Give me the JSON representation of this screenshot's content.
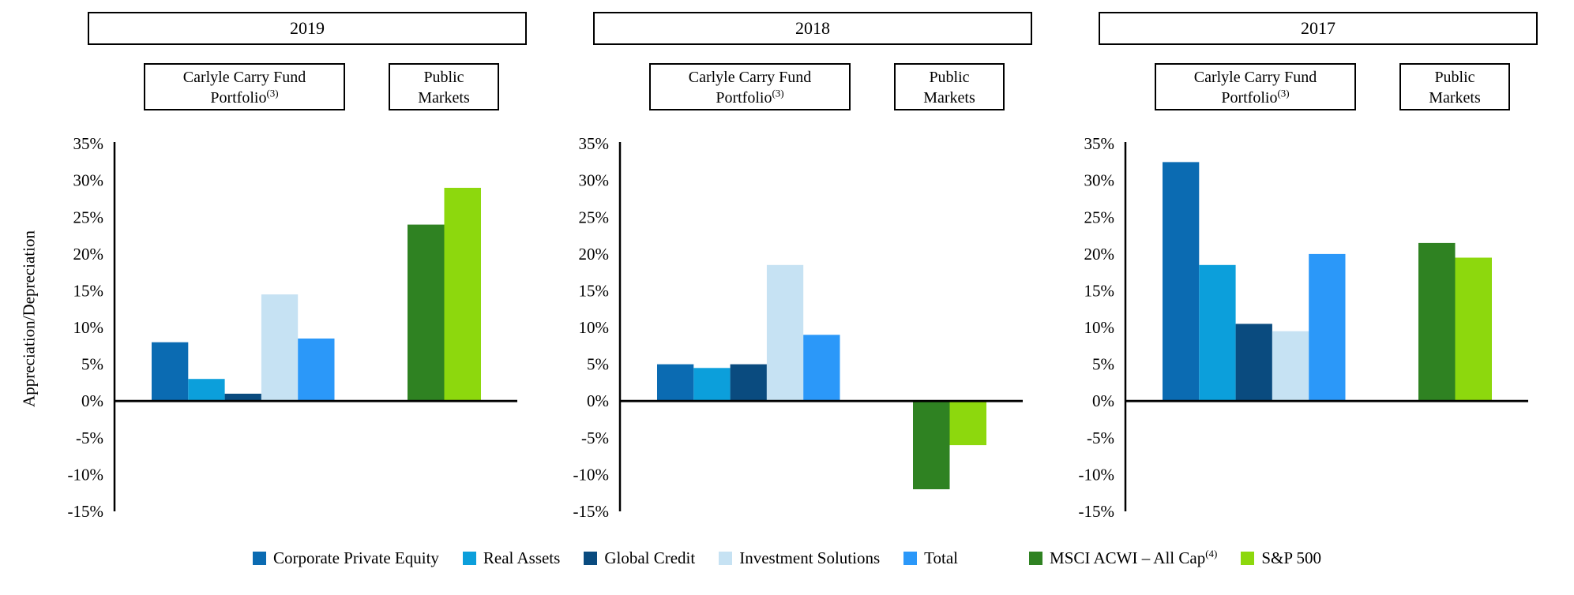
{
  "figure": {
    "labels": {
      "carry_line1": "Carlyle Carry Fund",
      "carry_line2": "Portfolio",
      "carry_sup": "(3)",
      "public_line1": "Public",
      "public_line2": "Markets"
    }
  },
  "chart_data": {
    "type": "bar",
    "title": "",
    "xlabel": "",
    "ylabel": "Appreciation/Depreciation",
    "ylim": [
      -15,
      35
    ],
    "tick_step": 5,
    "tick_labels": [
      "35%",
      "30%",
      "25%",
      "20%",
      "15%",
      "10%",
      "5%",
      "0%",
      "-5%",
      "-10%",
      "-15%"
    ],
    "grid": false,
    "legend_position": "bottom",
    "group_labels": [
      "Carlyle Carry Fund Portfolio(3)",
      "Public Markets"
    ],
    "series_labels": [
      "Corporate Private Equity",
      "Real Assets",
      "Global Credit",
      "Investment Solutions",
      "Total",
      "MSCI ACWI – All Cap(4)",
      "S&P 500"
    ],
    "series_colors": [
      "#0B6BB2",
      "#0C9FDB",
      "#0A4B7F",
      "#C6E2F3",
      "#2B98F9",
      "#2F8222",
      "#8DD80D"
    ],
    "charts": [
      {
        "year": "2019",
        "carry_values": [
          8,
          3,
          1,
          14.5,
          8.5
        ],
        "public_values": [
          24,
          29
        ]
      },
      {
        "year": "2018",
        "carry_values": [
          5,
          4.5,
          5,
          18.5,
          9
        ],
        "public_values": [
          -12,
          -6
        ]
      },
      {
        "year": "2017",
        "carry_values": [
          32.5,
          18.5,
          10.5,
          9.5,
          20
        ],
        "public_values": [
          21.5,
          19.5
        ]
      }
    ]
  },
  "legend": {
    "items": [
      {
        "label": "Corporate Private Equity",
        "color": "#0B6BB2"
      },
      {
        "label": "Real Assets",
        "color": "#0C9FDB"
      },
      {
        "label": "Global Credit",
        "color": "#0A4B7F"
      },
      {
        "label": "Investment Solutions",
        "color": "#C6E2F3"
      },
      {
        "label": "Total",
        "color": "#2B98F9"
      },
      {
        "label": "MSCI ACWI – All Cap",
        "sup": "(4)",
        "color": "#2F8222",
        "gap_before": true
      },
      {
        "label": "S&P 500",
        "color": "#8DD80D"
      }
    ]
  }
}
